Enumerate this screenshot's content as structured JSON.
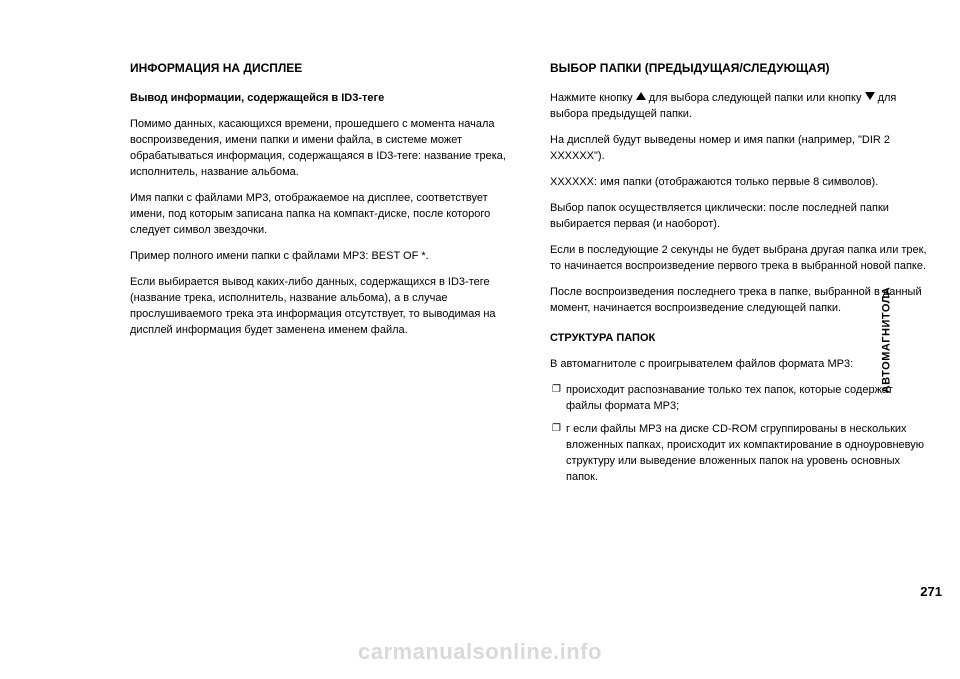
{
  "colors": {
    "bg": "#ffffff",
    "text": "#000000",
    "watermark": "#d9d9d9"
  },
  "side_label": "АВТОМАГНИТОЛА",
  "page_number": "271",
  "watermark": "carmanualsonline.info",
  "left": {
    "h1": "ИНФОРМАЦИЯ НА ДИСПЛЕЕ",
    "h2": "Вывод информации, содержащейся в ID3-теге",
    "p1": "Помимо данных, касающихся времени, прошедшего с момента начала воспроизведения, имени папки и имени файла, в системе может обрабатываться информация, содержащаяся в ID3-теге: название трека, исполнитель, название альбома.",
    "p2": "Имя папки с файлами MP3, отображаемое на дисплее, соответствует имени, под которым записана папка на компакт-диске, после которого следует символ звездочки.",
    "p3": "Пример полного имени папки с файлами MP3: BEST OF *.",
    "p4": "Если выбирается вывод каких-либо данных, содержащихся в ID3-теге (название трека, исполнитель, название альбома), а в случае прослушиваемого трека эта информация отсутствует, то выводимая на дисплей информация будет заменена именем файла."
  },
  "right": {
    "h1": "ВЫБОР ПАПКИ (ПРЕДЫДУЩАЯ/СЛЕДУЮЩАЯ)",
    "p1a": "Нажмите кнопку ",
    "p1b": " для выбора следующей папки или кнопку ",
    "p1c": " для выбора предыдущей папки.",
    "p2": "На дисплей будут выведены номер и имя папки (например, \"DIR 2 XXXXXX\").",
    "p3": "XXXXXX: имя папки (отображаются только первые 8 символов).",
    "p4": "Выбор папок осуществляется циклически: после последней папки выбирается первая (и наоборот).",
    "p5": "Если в последующие 2 секунды не будет выбрана другая папка или трек, то начинается воспроизведение первого трека в выбранной новой папке.",
    "p6": "После воспроизведения последнего трека в папке, выбранной в данный момент, начинается воспроизведение следующей папки.",
    "h2": "СТРУКТУРА ПАПОК",
    "p7": "В автомагнитоле с проигрывателем файлов формата MP3:",
    "li1": "происходит распознавание только тех папок, которые содержат файлы формата MP3;",
    "li2": "г если файлы MP3 на диске CD-ROM сгруппированы в нескольких вложенных папках, происходит их компактирование в одноуровневую структуру или выведение вложенных папок на уровень основных папок."
  }
}
